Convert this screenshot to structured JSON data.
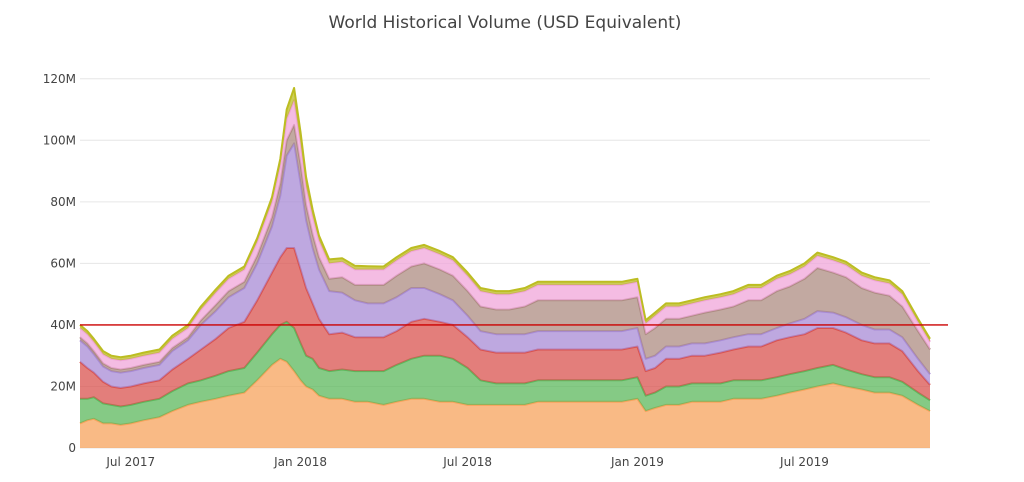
{
  "chart_data": {
    "type": "area",
    "stacked": true,
    "title": "World Historical Volume (USD Equivalent)",
    "xlabel": "",
    "ylabel": "",
    "x_ticks": [
      "Jul 2017",
      "Jan 2018",
      "Jul 2018",
      "Jan 2019",
      "Jul 2019"
    ],
    "y_ticks": [
      "0",
      "20M",
      "40M",
      "60M",
      "80M",
      "100M",
      "120M"
    ],
    "ylim": [
      0,
      130000000
    ],
    "xlim": [
      "2017-05-07",
      "2019-11-14"
    ],
    "grid": true,
    "reference_line": {
      "y": 40000000,
      "color": "#cc0000"
    },
    "x": [
      "2017-05-07",
      "2017-05-15",
      "2017-05-22",
      "2017-06-01",
      "2017-06-10",
      "2017-06-20",
      "2017-07-01",
      "2017-07-15",
      "2017-08-01",
      "2017-08-15",
      "2017-09-01",
      "2017-09-15",
      "2017-10-01",
      "2017-10-15",
      "2017-11-01",
      "2017-11-15",
      "2017-12-01",
      "2017-12-10",
      "2017-12-17",
      "2017-12-25",
      "2018-01-01",
      "2018-01-07",
      "2018-01-14",
      "2018-01-21",
      "2018-02-01",
      "2018-02-15",
      "2018-03-01",
      "2018-03-15",
      "2018-04-01",
      "2018-04-15",
      "2018-05-01",
      "2018-05-15",
      "2018-06-01",
      "2018-06-15",
      "2018-07-01",
      "2018-07-15",
      "2018-08-01",
      "2018-08-15",
      "2018-09-01",
      "2018-09-15",
      "2018-10-01",
      "2018-10-15",
      "2018-11-01",
      "2018-11-15",
      "2018-12-01",
      "2018-12-15",
      "2019-01-01",
      "2019-01-10",
      "2019-01-20",
      "2019-02-01",
      "2019-02-15",
      "2019-03-01",
      "2019-03-15",
      "2019-04-01",
      "2019-04-15",
      "2019-05-01",
      "2019-05-15",
      "2019-06-01",
      "2019-06-15",
      "2019-07-01",
      "2019-07-15",
      "2019-08-01",
      "2019-08-15",
      "2019-09-01",
      "2019-09-15",
      "2019-10-01",
      "2019-10-15",
      "2019-11-01",
      "2019-11-14"
    ],
    "series": [
      {
        "color": "#f7a35c",
        "values": [
          8,
          9,
          9.5,
          8,
          8,
          7.5,
          8,
          9,
          10,
          12,
          14,
          15,
          16,
          17,
          18,
          22,
          27,
          29,
          28,
          25,
          22,
          20,
          19,
          17,
          16,
          16,
          15,
          15,
          14,
          15,
          16,
          16,
          15,
          15,
          14,
          14,
          14,
          14,
          14,
          15,
          15,
          15,
          15,
          15,
          15,
          15,
          16,
          12,
          13,
          14,
          14,
          15,
          15,
          15,
          16,
          16,
          16,
          17,
          18,
          19,
          20,
          21,
          20,
          19,
          18,
          18,
          17,
          14,
          12
        ]
      },
      {
        "color": "#5cb85c",
        "values": [
          8,
          7,
          7,
          6.5,
          6,
          6,
          6,
          6,
          6,
          6.5,
          7,
          7,
          7.5,
          8,
          8,
          9,
          10,
          11,
          13,
          14,
          12,
          10,
          10,
          9,
          9,
          9.5,
          10,
          10,
          11,
          12,
          13,
          14,
          15,
          14,
          12,
          8,
          7,
          7,
          7,
          7,
          7,
          7,
          7,
          7,
          7,
          7,
          7,
          5,
          5,
          6,
          6,
          6,
          6,
          6,
          6,
          6,
          6,
          6,
          6,
          6,
          6,
          6,
          5.5,
          5,
          5,
          5,
          4.5,
          4,
          3.5
        ]
      },
      {
        "color": "#d9534f",
        "values": [
          12,
          10,
          8,
          7,
          6,
          6,
          6,
          6,
          6,
          7,
          8,
          10,
          12,
          14,
          15,
          17,
          20,
          22,
          24,
          26,
          24,
          22,
          18,
          16,
          12,
          12,
          11,
          11,
          11,
          11,
          12,
          12,
          11,
          11,
          10,
          10,
          10,
          10,
          10,
          10,
          10,
          10,
          10,
          10,
          10,
          10,
          10,
          8,
          8,
          9,
          9,
          9,
          9,
          10,
          10,
          11,
          11,
          12,
          12,
          12,
          13,
          12,
          12,
          11,
          11,
          11,
          10,
          7,
          5
        ]
      },
      {
        "color": "#a88bd6",
        "values": [
          7,
          7,
          6,
          5,
          5,
          5,
          5,
          5,
          5,
          6,
          6,
          8,
          9,
          10,
          11,
          12,
          15,
          20,
          30,
          34,
          28,
          22,
          18,
          16,
          14,
          13,
          12,
          11,
          11,
          11,
          11,
          10,
          9,
          8,
          7,
          6,
          6,
          6,
          6,
          6,
          6,
          6,
          6,
          6,
          6,
          6,
          6,
          4,
          4,
          4,
          4,
          4,
          4,
          4,
          4,
          4,
          4,
          4,
          4.5,
          5,
          5.5,
          5,
          5,
          5,
          4.5,
          4.5,
          4.5,
          4,
          3.5
        ]
      },
      {
        "color": "#ad8c82",
        "values": [
          1,
          1,
          1,
          1,
          1,
          1,
          1,
          1,
          1,
          1,
          1,
          1.5,
          2,
          2,
          2,
          2.5,
          3,
          4,
          5,
          6,
          6,
          5,
          4.5,
          4,
          4,
          5,
          5,
          6,
          6,
          7,
          7,
          8,
          8,
          8,
          8,
          8,
          8,
          8,
          9,
          10,
          10,
          10,
          10,
          10,
          10,
          10,
          10,
          8,
          9,
          9,
          9,
          9,
          10,
          10,
          10,
          11,
          11,
          12,
          12,
          13,
          14,
          13,
          13,
          12,
          12,
          11,
          10,
          9,
          8
        ]
      },
      {
        "color": "#f0a5d9",
        "values": [
          3,
          3,
          3,
          3,
          3,
          3,
          3,
          3,
          3,
          3,
          3,
          3.5,
          4,
          4,
          4,
          4.5,
          5,
          6,
          7,
          8,
          7,
          6,
          6,
          5.5,
          5,
          5,
          5,
          5,
          5,
          5,
          5,
          5,
          5,
          5,
          5,
          5,
          5,
          5,
          5,
          5,
          5,
          5,
          5,
          5,
          5,
          5,
          5,
          3.5,
          4,
          4,
          4,
          4,
          4,
          4,
          4,
          4,
          4,
          4,
          4,
          4,
          4,
          4,
          4,
          4,
          4,
          4,
          4,
          3,
          2.5
        ]
      },
      {
        "color": "#bcbd22",
        "values": [
          1,
          1,
          1,
          1,
          1,
          1,
          1,
          1,
          1,
          1,
          1,
          1,
          1,
          1,
          1,
          1.2,
          1.5,
          2,
          3,
          4,
          3.5,
          3,
          2,
          1.5,
          1.3,
          1.2,
          1.2,
          1.1,
          1,
          1,
          1,
          1,
          1,
          1,
          1,
          1,
          1,
          1,
          1,
          1,
          1,
          1,
          1,
          1,
          1,
          1,
          1,
          1,
          1,
          1,
          1,
          1,
          1,
          1,
          1,
          1,
          1,
          1,
          1,
          1,
          1,
          1,
          1,
          1,
          1,
          1,
          1,
          1,
          1
        ]
      }
    ]
  }
}
